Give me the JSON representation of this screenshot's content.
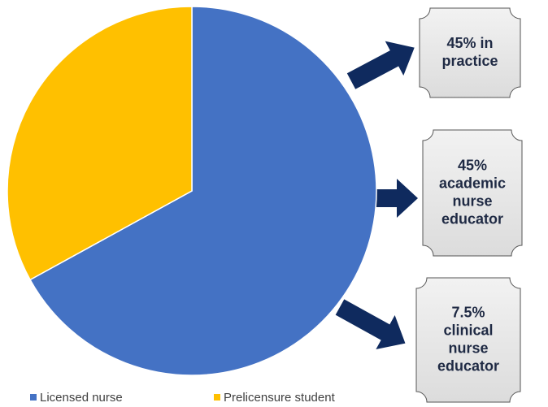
{
  "chart_data": {
    "type": "pie",
    "categories": [
      "Licensed nurse",
      "Prelicensure student"
    ],
    "values": [
      67,
      33
    ],
    "colors": [
      "#4472c4",
      "#ffc000"
    ],
    "legend": "bottom",
    "annotations": [
      [
        "45% in",
        "practice"
      ],
      [
        "45%",
        "academic",
        "nurse",
        "educator"
      ],
      [
        "7.5%",
        "clinical",
        "nurse",
        "educator"
      ]
    ]
  }
}
